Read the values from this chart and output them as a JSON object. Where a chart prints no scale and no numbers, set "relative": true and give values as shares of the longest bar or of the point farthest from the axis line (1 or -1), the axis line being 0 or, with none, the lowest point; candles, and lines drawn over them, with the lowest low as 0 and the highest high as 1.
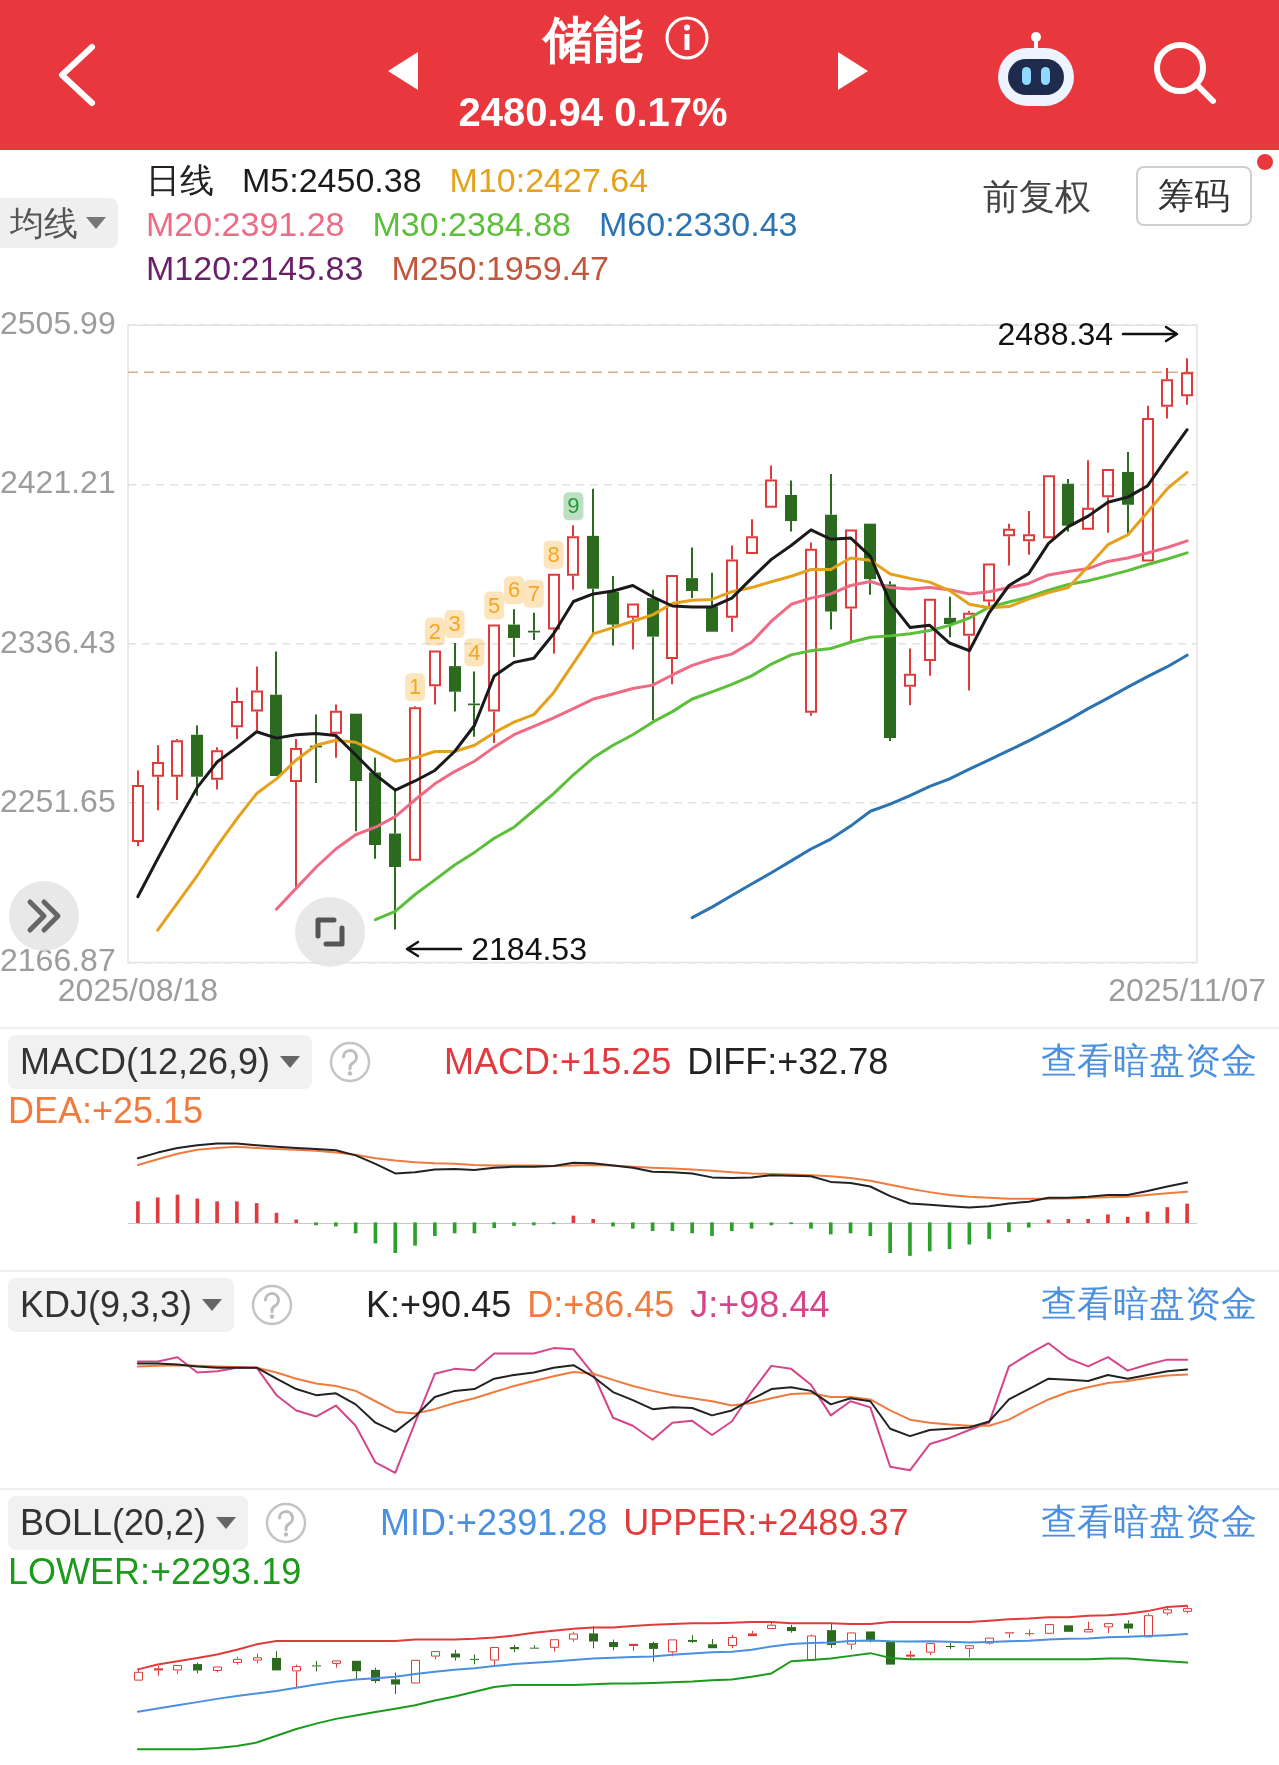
{
  "chart_data": [
    {
      "type": "candlestick",
      "title": "储能",
      "subtitle": "2480.94 0.17%",
      "categories": [
        "2025/08/18",
        null,
        null,
        null,
        null,
        null,
        null,
        null,
        null,
        null,
        null,
        null,
        null,
        null,
        null,
        null,
        null,
        null,
        null,
        null,
        null,
        null,
        null,
        null,
        null,
        null,
        null,
        null,
        null,
        null,
        null,
        null,
        null,
        null,
        null,
        null,
        null,
        null,
        null,
        null,
        null,
        null,
        null,
        null,
        null,
        null,
        null,
        null,
        null,
        null,
        null,
        null,
        null,
        "2025/11/07"
      ],
      "ohlc": [
        [
          2231.1,
          2269.1,
          2228.8,
          2261.3
        ],
        [
          2265.8,
          2282.5,
          2247.9,
          2273.6
        ],
        [
          2265.8,
          2285.9,
          2253.4,
          2285.2
        ],
        [
          2288.1,
          2293.0,
          2255.7,
          2265.8
        ],
        [
          2264.2,
          2281.4,
          2259.0,
          2279.8
        ],
        [
          2292.1,
          2313.2,
          2285.9,
          2306.0
        ],
        [
          2300.4,
          2324.4,
          2290.4,
          2311.6
        ],
        [
          2309.4,
          2332.4,
          2265.7,
          2266.2
        ],
        [
          2262.9,
          2285.9,
          2207.2,
          2281.0
        ],
        [
          2282.3,
          2298.9,
          2262.4,
          2281.4
        ],
        [
          2288.6,
          2304.2,
          2275.8,
          2300.9
        ],
        [
          2299.3,
          2299.3,
          2236.7,
          2263.5
        ],
        [
          2268.0,
          2275.8,
          2222.1,
          2229.5
        ],
        [
          2235.6,
          2259.0,
          2184.53,
          2217.7
        ],
        [
          2221.0,
          2303.3,
          2221.0,
          2302.7
        ],
        [
          2313.9,
          2332.9,
          2304.2,
          2332.9
        ],
        [
          2324.6,
          2336.9,
          2300.4,
          2311.0
        ],
        [
          2304.7,
          2321.7,
          2287.0,
          2303.8
        ],
        [
          2300.4,
          2346.7,
          2283.7,
          2346.7
        ],
        [
          2346.7,
          2354.8,
          2329.5,
          2339.6
        ],
        [
          2343.4,
          2353.0,
          2338.5,
          2342.5
        ],
        [
          2344.1,
          2373.8,
          2331.3,
          2373.8
        ],
        [
          2372.7,
          2399.5,
          2365.3,
          2393.7
        ],
        [
          2393.9,
          2419.0,
          2342.3,
          2365.8
        ],
        [
          2364.2,
          2372.5,
          2335.6,
          2346.7
        ],
        [
          2350.3,
          2357.9,
          2333.5,
          2357.9
        ],
        [
          2360.8,
          2365.3,
          2296.0,
          2340.3
        ],
        [
          2328.4,
          2373.1,
          2315.0,
          2373.1
        ],
        [
          2371.4,
          2387.7,
          2360.8,
          2364.6
        ],
        [
          2356.4,
          2374.3,
          2342.9,
          2342.9
        ],
        [
          2350.3,
          2388.8,
          2342.9,
          2381.4
        ],
        [
          2384.3,
          2402.7,
          2384.3,
          2393.7
        ],
        [
          2408.9,
          2431.3,
          2408.5,
          2423.9
        ],
        [
          2415.6,
          2423.4,
          2396.2,
          2401.8
        ],
        [
          2299.8,
          2390.4,
          2298.2,
          2387.0
        ],
        [
          2405.1,
          2426.8,
          2344.1,
          2353.7
        ],
        [
          2355.2,
          2397.3,
          2337.8,
          2397.3
        ],
        [
          2400.4,
          2400.4,
          2362.6,
          2370.9
        ],
        [
          2368.0,
          2369.8,
          2284.8,
          2286.3
        ],
        [
          2313.6,
          2334.0,
          2303.8,
          2320.6
        ],
        [
          2327.3,
          2360.4,
          2319.5,
          2360.4
        ],
        [
          2350.3,
          2361.5,
          2340.0,
          2347.0
        ],
        [
          2340.7,
          2354.1,
          2311.6,
          2353.0
        ],
        [
          2359.0,
          2379.2,
          2355.2,
          2379.2
        ],
        [
          2393.7,
          2400.4,
          2378.1,
          2397.7
        ],
        [
          2391.0,
          2407.1,
          2383.9,
          2394.8
        ],
        [
          2392.6,
          2426.2,
          2392.6,
          2426.2
        ],
        [
          2421.7,
          2424.1,
          2396.2,
          2399.3
        ],
        [
          2397.1,
          2434.2,
          2397.1,
          2408.9
        ],
        [
          2414.5,
          2429.5,
          2395.5,
          2429.5
        ],
        [
          2427.9,
          2438.5,
          2394.4,
          2410.5
        ],
        [
          2380.3,
          2463.1,
          2379.8,
          2456.6
        ],
        [
          2462.6,
          2483.2,
          2456.4,
          2477.2
        ],
        [
          2468.2,
          2488.34,
          2463.7,
          2480.94
        ]
      ],
      "colors": [
        "#e03b3b",
        "#e03b3b",
        "#e03b3b",
        "#2c6b1f",
        "#e03b3b",
        "#e03b3b",
        "#e03b3b",
        "#2c6b1f",
        "#e03b3b",
        "#2c6b1f",
        "#e03b3b",
        "#2c6b1f",
        "#2c6b1f",
        "#2c6b1f",
        "#e03b3b",
        "#e03b3b",
        "#2c6b1f",
        "#2c6b1f",
        "#e03b3b",
        "#2c6b1f",
        "#2c6b1f",
        "#e03b3b",
        "#e03b3b",
        "#2c6b1f",
        "#2c6b1f",
        "#e03b3b",
        "#2c6b1f",
        "#e03b3b",
        "#2c6b1f",
        "#2c6b1f",
        "#e03b3b",
        "#e03b3b",
        "#e03b3b",
        "#2c6b1f",
        "#e03b3b",
        "#2c6b1f",
        "#e03b3b",
        "#2c6b1f",
        "#2c6b1f",
        "#e03b3b",
        "#e03b3b",
        "#2c6b1f",
        "#e03b3b",
        "#e03b3b",
        "#e03b3b",
        "#e03b3b",
        "#e03b3b",
        "#2c6b1f",
        "#e03b3b",
        "#e03b3b",
        "#2c6b1f",
        "#e03b3b",
        "#e03b3b",
        "#e03b3b"
      ],
      "value_labels": [
        null,
        null,
        null,
        null,
        null,
        null,
        null,
        null,
        null,
        null,
        null,
        null,
        null,
        null,
        "1",
        "2",
        "3",
        "4",
        "5",
        "6",
        "7",
        "8",
        "9",
        null,
        null,
        null,
        null,
        null,
        null,
        null,
        null,
        null,
        null,
        null,
        null,
        null,
        null,
        null,
        null,
        null,
        null,
        null,
        null,
        null,
        null,
        null,
        null,
        null,
        null,
        null,
        null,
        null,
        null,
        null
      ],
      "series": [
        {
          "name": "M5:2450.38",
          "type": "line",
          "color": "#1a1a1a",
          "values": [
            2202.0,
            2222.1,
            2241.6,
            2260.1,
            2273.6,
            2281.4,
            2289.7,
            2286.3,
            2288.1,
            2288.8,
            2287.7,
            2277.4,
            2266.8,
            2258.6,
            2263.5,
            2269.1,
            2279.2,
            2293.0,
            2319.4,
            2326.6,
            2328.8,
            2341.8,
            2359.0,
            2363.0,
            2364.6,
            2367.5,
            2361.5,
            2356.6,
            2356.1,
            2356.1,
            2360.8,
            2371.3,
            2381.4,
            2388.8,
            2397.1,
            2392.1,
            2392.8,
            2383.0,
            2358.6,
            2345.2,
            2346.3,
            2336.9,
            2332.8,
            2353.0,
            2367.5,
            2373.8,
            2389.9,
            2398.8,
            2404.4,
            2411.8,
            2414.5,
            2420.5,
            2435.7,
            2450.38
          ]
        },
        {
          "name": "M10:2427.64",
          "type": "line",
          "color": "#e6a11c",
          "values": [
            null,
            2184.1,
            2198.6,
            2213.2,
            2228.8,
            2243.4,
            2256.8,
            2264.6,
            2274.7,
            2282.5,
            2285.2,
            2284.1,
            2279.2,
            2274.0,
            2275.8,
            2279.2,
            2279.2,
            2282.5,
            2289.2,
            2294.8,
            2298.8,
            2310.5,
            2326.1,
            2341.8,
            2345.1,
            2348.5,
            2351.9,
            2357.9,
            2359.7,
            2360.1,
            2364.2,
            2366.4,
            2369.5,
            2372.4,
            2376.0,
            2376.0,
            2382.1,
            2380.9,
            2373.6,
            2371.3,
            2369.3,
            2364.8,
            2357.5,
            2355.7,
            2356.3,
            2360.4,
            2363.7,
            2366.4,
            2377.6,
            2389.2,
            2394.4,
            2406.5,
            2419.0,
            2427.64
          ]
        },
        {
          "name": "M20:2391.28",
          "type": "line",
          "color": "#ef6a84",
          "values": [
            null,
            null,
            null,
            null,
            null,
            null,
            null,
            2195.3,
            2206.5,
            2217.6,
            2227.3,
            2234.9,
            2238.9,
            2244.5,
            2253.5,
            2262.0,
            2268.5,
            2274.0,
            2281.5,
            2288.1,
            2292.6,
            2297.1,
            2302.0,
            2307.1,
            2309.8,
            2312.7,
            2314.5,
            2319.9,
            2325.0,
            2328.4,
            2331.0,
            2337.3,
            2348.5,
            2357.5,
            2360.8,
            2363.0,
            2367.5,
            2369.6,
            2366.4,
            2365.7,
            2366.4,
            2365.3,
            2363.0,
            2364.2,
            2366.4,
            2368.6,
            2373.1,
            2374.9,
            2376.5,
            2380.3,
            2382.1,
            2384.8,
            2387.7,
            2391.28
          ]
        },
        {
          "name": "M30:2384.88",
          "type": "line",
          "color": "#5cbf3a",
          "values": [
            null,
            null,
            null,
            null,
            null,
            null,
            null,
            null,
            null,
            null,
            null,
            null,
            2189.7,
            2194.1,
            2203.1,
            2210.9,
            2218.8,
            2225.5,
            2233.0,
            2238.9,
            2247.8,
            2256.8,
            2266.8,
            2275.8,
            2282.5,
            2288.1,
            2294.8,
            2300.4,
            2307.1,
            2310.9,
            2314.9,
            2319.4,
            2325.7,
            2330.6,
            2332.8,
            2334.0,
            2337.3,
            2340.0,
            2340.7,
            2341.8,
            2343.6,
            2346.3,
            2350.2,
            2356.0,
            2358.7,
            2361.4,
            2365.0,
            2368.0,
            2370.0,
            2372.6,
            2375.4,
            2378.7,
            2381.6,
            2384.88
          ]
        },
        {
          "name": "M60:2330.43",
          "type": "line",
          "color": "#2b73b2",
          "values": [
            null,
            null,
            null,
            null,
            null,
            null,
            null,
            null,
            null,
            null,
            null,
            null,
            null,
            null,
            null,
            null,
            null,
            null,
            null,
            null,
            null,
            null,
            null,
            null,
            null,
            null,
            null,
            null,
            2190.8,
            2196.4,
            2202.6,
            2208.7,
            2214.7,
            2221.0,
            2227.3,
            2232.6,
            2239.5,
            2247.4,
            2251.2,
            2255.7,
            2260.6,
            2264.6,
            2269.8,
            2274.7,
            2279.8,
            2284.8,
            2290.3,
            2295.9,
            2302.0,
            2307.6,
            2313.4,
            2319.0,
            2324.3,
            2330.43
          ]
        },
        {
          "name": "M120:2145.83",
          "type": "line",
          "color": "#6a1f69",
          "values": [
            null,
            null,
            null,
            null,
            null,
            null,
            null,
            null,
            null,
            null,
            null,
            null,
            null,
            null,
            null,
            null,
            null,
            null,
            null,
            null,
            null,
            null,
            null,
            null,
            null,
            null,
            null,
            null,
            null,
            null,
            null,
            null,
            null,
            null,
            null,
            null,
            null,
            null,
            null,
            null,
            null,
            null,
            null,
            null,
            null,
            null,
            null,
            null,
            null,
            null,
            null,
            null,
            null,
            null
          ]
        },
        {
          "name": "M250:1959.47",
          "type": "line",
          "color": "#c2573d",
          "values": [
            null,
            null,
            null,
            null,
            null,
            null,
            null,
            null,
            null,
            null,
            null,
            null,
            null,
            null,
            null,
            null,
            null,
            null,
            null,
            null,
            null,
            null,
            null,
            null,
            null,
            null,
            null,
            null,
            null,
            null,
            null,
            null,
            null,
            null,
            null,
            null,
            null,
            null,
            null,
            null,
            null,
            null,
            null,
            null,
            null,
            null,
            null,
            null,
            null,
            null,
            null,
            null,
            null,
            null
          ]
        }
      ],
      "ylim": [
        2166.87,
        2505.99
      ],
      "yticks": [
        2166.87,
        2251.65,
        2336.43,
        2421.21,
        2505.99
      ],
      "grid": "y",
      "legend": "top left",
      "marker": "none",
      "ref_lines": [
        {
          "axis": "y",
          "value": 2480.94,
          "color": "#dcae82",
          "line_style": "dashed"
        }
      ],
      "annotations": [
        "日线",
        "均线",
        "前复权",
        "筹码",
        "2488.34",
        "2184.53"
      ]
    },
    {
      "type": "line",
      "title": "MACD(12,26,9)",
      "relative": true,
      "categories": [
        null,
        null,
        null,
        null,
        null,
        null,
        null,
        null,
        null,
        null,
        null,
        null,
        null,
        null,
        null,
        null,
        null,
        null,
        null,
        null,
        null,
        null,
        null,
        null,
        null,
        null,
        null,
        null,
        null,
        null,
        null,
        null,
        null,
        null,
        null,
        null,
        null,
        null,
        null,
        null,
        null,
        null,
        null,
        null,
        null,
        null,
        null,
        null,
        null,
        null,
        null,
        null,
        null,
        null
      ],
      "tick_labels": false,
      "legend": "top left",
      "marker": "none",
      "series": [
        {
          "name": "MACD:+15.25",
          "type": "bar",
          "color": "#e0393e",
          "colors": [
            "#e0393e",
            "#e0393e",
            "#e0393e",
            "#e0393e",
            "#e0393e",
            "#e0393e",
            "#e0393e",
            "#e0393e",
            "#e0393e",
            "#2ba02b",
            "#2ba02b",
            "#2ba02b",
            "#2ba02b",
            "#2ba02b",
            "#2ba02b",
            "#2ba02b",
            "#2ba02b",
            "#2ba02b",
            "#2ba02b",
            "#2ba02b",
            "#2ba02b",
            "#2ba02b",
            "#e0393e",
            "#e0393e",
            "#2ba02b",
            "#2ba02b",
            "#2ba02b",
            "#2ba02b",
            "#2ba02b",
            "#2ba02b",
            "#2ba02b",
            "#2ba02b",
            "#2ba02b",
            "#2ba02b",
            "#2ba02b",
            "#2ba02b",
            "#2ba02b",
            "#2ba02b",
            "#2ba02b",
            "#2ba02b",
            "#2ba02b",
            "#2ba02b",
            "#2ba02b",
            "#2ba02b",
            "#2ba02b",
            "#2ba02b",
            "#e0393e",
            "#e0393e",
            "#e0393e",
            "#e0393e",
            "#e0393e",
            "#e0393e",
            "#e0393e",
            "#e0393e"
          ],
          "values": [
            0.265,
            0.315,
            0.35,
            0.301,
            0.265,
            0.265,
            0.243,
            0.121,
            0.036,
            -0.028,
            -0.043,
            -0.129,
            -0.257,
            -0.378,
            -0.285,
            -0.164,
            -0.129,
            -0.129,
            -0.064,
            -0.036,
            -0.028,
            -0.014,
            0.085,
            0.043,
            -0.043,
            -0.071,
            -0.101,
            -0.101,
            -0.129,
            -0.164,
            -0.101,
            -0.071,
            -0.028,
            -0.014,
            -0.071,
            -0.143,
            -0.129,
            -0.164,
            -0.378,
            -0.414,
            -0.357,
            -0.329,
            -0.271,
            -0.2,
            -0.115,
            -0.057,
            0.036,
            0.043,
            0.043,
            0.101,
            0.071,
            0.136,
            0.192,
            0.236
          ]
        },
        {
          "name": "DIFF:+32.78",
          "color": "#222222",
          "values": [
            0.814,
            0.885,
            0.943,
            0.978,
            1,
            1,
            0.978,
            0.958,
            0.943,
            0.929,
            0.915,
            0.85,
            0.743,
            0.622,
            0.636,
            0.671,
            0.679,
            0.665,
            0.693,
            0.707,
            0.707,
            0.715,
            0.757,
            0.75,
            0.721,
            0.693,
            0.643,
            0.636,
            0.622,
            0.572,
            0.564,
            0.572,
            0.6,
            0.592,
            0.586,
            0.515,
            0.501,
            0.457,
            0.336,
            0.243,
            0.228,
            0.208,
            0.192,
            0.208,
            0.243,
            0.265,
            0.315,
            0.315,
            0.329,
            0.35,
            0.35,
            0.4,
            0.457,
            0.508
          ]
        },
        {
          "name": "DEA:+25.15",
          "color": "#f07b3f",
          "values": [
            0.729,
            0.8,
            0.871,
            0.921,
            0.943,
            0.958,
            0.943,
            0.929,
            0.921,
            0.907,
            0.885,
            0.857,
            0.814,
            0.786,
            0.764,
            0.75,
            0.743,
            0.729,
            0.721,
            0.721,
            0.721,
            0.715,
            0.721,
            0.729,
            0.721,
            0.707,
            0.693,
            0.685,
            0.671,
            0.657,
            0.636,
            0.622,
            0.614,
            0.608,
            0.6,
            0.586,
            0.564,
            0.529,
            0.479,
            0.428,
            0.386,
            0.35,
            0.329,
            0.315,
            0.301,
            0.301,
            0.301,
            0.307,
            0.315,
            0.321,
            0.329,
            0.35,
            0.372,
            0.39
          ]
        }
      ],
      "annotations": [
        "查看暗盘资金"
      ]
    },
    {
      "type": "line",
      "title": "KDJ(9,3,3)",
      "relative": true,
      "categories": [
        null,
        null,
        null,
        null,
        null,
        null,
        null,
        null,
        null,
        null,
        null,
        null,
        null,
        null,
        null,
        null,
        null,
        null,
        null,
        null,
        null,
        null,
        null,
        null,
        null,
        null,
        null,
        null,
        null,
        null,
        null,
        null,
        null,
        null,
        null,
        null,
        null,
        null,
        null,
        null,
        null,
        null,
        null,
        null,
        null,
        null,
        null,
        null,
        null,
        null,
        null,
        null,
        null,
        null
      ],
      "tick_labels": false,
      "legend": "top left",
      "marker": "none",
      "series": [
        {
          "name": "K:+90.45",
          "color": "#222222",
          "values": [
            0.844,
            0.844,
            0.835,
            0.821,
            0.811,
            0.811,
            0.811,
            0.726,
            0.646,
            0.599,
            0.613,
            0.528,
            0.387,
            0.316,
            0.434,
            0.585,
            0.632,
            0.646,
            0.726,
            0.755,
            0.774,
            0.811,
            0.83,
            0.741,
            0.623,
            0.561,
            0.491,
            0.505,
            0.5,
            0.443,
            0.481,
            0.566,
            0.646,
            0.66,
            0.632,
            0.528,
            0.575,
            0.552,
            0.34,
            0.283,
            0.33,
            0.34,
            0.349,
            0.396,
            0.566,
            0.646,
            0.726,
            0.717,
            0.708,
            0.755,
            0.726,
            0.755,
            0.783,
            0.797
          ]
        },
        {
          "name": "D:+86.45",
          "color": "#f07b3f",
          "values": [
            0.821,
            0.825,
            0.83,
            0.825,
            0.821,
            0.816,
            0.811,
            0.774,
            0.726,
            0.689,
            0.67,
            0.632,
            0.552,
            0.472,
            0.458,
            0.491,
            0.538,
            0.575,
            0.623,
            0.67,
            0.708,
            0.745,
            0.778,
            0.764,
            0.717,
            0.67,
            0.632,
            0.599,
            0.575,
            0.552,
            0.519,
            0.538,
            0.575,
            0.608,
            0.613,
            0.585,
            0.585,
            0.566,
            0.481,
            0.41,
            0.387,
            0.373,
            0.363,
            0.363,
            0.41,
            0.491,
            0.566,
            0.623,
            0.66,
            0.693,
            0.708,
            0.731,
            0.75,
            0.759
          ]
        },
        {
          "name": "J:+98.44",
          "color": "#d6458a",
          "values": [
            0.858,
            0.858,
            0.892,
            0.774,
            0.783,
            0.811,
            0.811,
            0.599,
            0.481,
            0.434,
            0.519,
            0.363,
            0.08,
            0,
            0.387,
            0.764,
            0.802,
            0.792,
            0.92,
            0.92,
            0.92,
            0.962,
            0.953,
            0.764,
            0.425,
            0.363,
            0.255,
            0.387,
            0.401,
            0.292,
            0.396,
            0.623,
            0.825,
            0.802,
            0.679,
            0.443,
            0.552,
            0.505,
            0.047,
            0.019,
            0.222,
            0.269,
            0.33,
            0.387,
            0.821,
            0.915,
            1,
            0.882,
            0.821,
            0.892,
            0.788,
            0.835,
            0.873,
            0.872
          ]
        }
      ],
      "annotations": [
        "查看暗盘资金"
      ]
    },
    {
      "type": "line",
      "title": "BOLL(20,2)",
      "relative": true,
      "categories": [
        null,
        null,
        null,
        null,
        null,
        null,
        null,
        null,
        null,
        null,
        null,
        null,
        null,
        null,
        null,
        null,
        null,
        null,
        null,
        null,
        null,
        null,
        null,
        null,
        null,
        null,
        null,
        null,
        null,
        null,
        null,
        null,
        null,
        null,
        null,
        null,
        null,
        null,
        null,
        null,
        null,
        null,
        null,
        null,
        null,
        null,
        null,
        null,
        null,
        null,
        null,
        null,
        null,
        null
      ],
      "tick_labels": false,
      "legend": "top left",
      "marker": "none",
      "series": [
        {
          "type": "candlestick",
          "ohlc": [
            [
              0.153,
              0.278,
              0.146,
              0.253
            ],
            [
              0.268,
              0.322,
              0.209,
              0.293
            ],
            [
              0.268,
              0.334,
              0.227,
              0.331
            ],
            [
              0.341,
              0.357,
              0.234,
              0.268
            ],
            [
              0.262,
              0.319,
              0.245,
              0.314
            ],
            [
              0.354,
              0.424,
              0.334,
              0.4
            ],
            [
              0.381,
              0.46,
              0.348,
              0.418
            ],
            [
              0.411,
              0.487,
              0.267,
              0.269
            ],
            [
              0.258,
              0.334,
              0.075,
              0.318
            ],
            [
              0.322,
              0.376,
              0.256,
              0.319
            ],
            [
              0.343,
              0.394,
              0.3,
              0.383
            ],
            [
              0.378,
              0.378,
              0.172,
              0.26
            ],
            [
              0.275,
              0.3,
              0.124,
              0.148
            ],
            [
              0.168,
              0.245,
              0,
              0.109
            ],
            [
              0.12,
              0.391,
              0.12,
              0.389
            ],
            [
              0.426,
              0.488,
              0.394,
              0.488
            ],
            [
              0.461,
              0.502,
              0.381,
              0.416
            ],
            [
              0.396,
              0.451,
              0.337,
              0.393
            ],
            [
              0.381,
              0.534,
              0.326,
              0.534
            ],
            [
              0.534,
              0.56,
              0.477,
              0.51
            ],
            [
              0.523,
              0.555,
              0.507,
              0.52
            ],
            [
              0.525,
              0.623,
              0.483,
              0.623
            ],
            [
              0.619,
              0.708,
              0.595,
              0.688
            ],
            [
              0.689,
              0.772,
              0.519,
              0.597
            ],
            [
              0.591,
              0.619,
              0.497,
              0.534
            ],
            [
              0.546,
              0.571,
              0.49,
              0.571
            ],
            [
              0.58,
              0.595,
              0.367,
              0.513
            ],
            [
              0.474,
              0.621,
              0.429,
              0.621
            ],
            [
              0.615,
              0.669,
              0.58,
              0.593
            ],
            [
              0.566,
              0.625,
              0.521,
              0.521
            ],
            [
              0.546,
              0.672,
              0.521,
              0.648
            ],
            [
              0.658,
              0.718,
              0.658,
              0.688
            ],
            [
              0.739,
              0.812,
              0.737,
              0.788
            ],
            [
              0.761,
              0.786,
              0.697,
              0.715
            ],
            [
              0.379,
              0.678,
              0.374,
              0.666
            ],
            [
              0.726,
              0.797,
              0.525,
              0.557
            ],
            [
              0.562,
              0.7,
              0.504,
              0.7
            ],
            [
              0.711,
              0.711,
              0.586,
              0.613
            ],
            [
              0.604,
              0.61,
              0.33,
              0.335
            ],
            [
              0.425,
              0.492,
              0.393,
              0.448
            ],
            [
              0.47,
              0.579,
              0.444,
              0.579
            ],
            [
              0.546,
              0.582,
              0.512,
              0.535
            ],
            [
              0.514,
              0.558,
              0.418,
              0.555
            ],
            [
              0.574,
              0.641,
              0.562,
              0.641
            ],
            [
              0.688,
              0.711,
              0.637,
              0.702
            ],
            [
              0.68,
              0.733,
              0.656,
              0.692
            ],
            [
              0.685,
              0.795,
              0.685,
              0.795
            ],
            [
              0.781,
              0.789,
              0.697,
              0.707
            ],
            [
              0.7,
              0.822,
              0.7,
              0.739
            ],
            [
              0.757,
              0.806,
              0.694,
              0.806
            ],
            [
              0.801,
              0.836,
              0.691,
              0.744
            ],
            [
              0.644,
              0.917,
              0.643,
              0.896
            ],
            [
              0.915,
              0.983,
              0.895,
              0.963
            ],
            [
              0.934,
              1,
              0.919,
              0.976
            ]
          ],
          "colors": [
            "#e03b3b",
            "#e03b3b",
            "#e03b3b",
            "#2c6b1f",
            "#e03b3b",
            "#e03b3b",
            "#e03b3b",
            "#2c6b1f",
            "#e03b3b",
            "#2c6b1f",
            "#e03b3b",
            "#2c6b1f",
            "#2c6b1f",
            "#2c6b1f",
            "#e03b3b",
            "#e03b3b",
            "#2c6b1f",
            "#2c6b1f",
            "#e03b3b",
            "#2c6b1f",
            "#2c6b1f",
            "#e03b3b",
            "#e03b3b",
            "#2c6b1f",
            "#2c6b1f",
            "#e03b3b",
            "#2c6b1f",
            "#e03b3b",
            "#2c6b1f",
            "#2c6b1f",
            "#e03b3b",
            "#e03b3b",
            "#e03b3b",
            "#2c6b1f",
            "#e03b3b",
            "#2c6b1f",
            "#e03b3b",
            "#2c6b1f",
            "#2c6b1f",
            "#e03b3b",
            "#e03b3b",
            "#2c6b1f",
            "#e03b3b",
            "#e03b3b",
            "#e03b3b",
            "#e03b3b",
            "#e03b3b",
            "#2c6b1f",
            "#e03b3b",
            "#e03b3b",
            "#2c6b1f",
            "#e03b3b",
            "#e03b3b",
            "#e03b3b"
          ]
        },
        {
          "name": "MID:+2391.28",
          "color": "#4a8fe0",
          "values": [
            -0.199,
            -0.163,
            -0.127,
            -0.091,
            -0.054,
            -0.021,
            0.008,
            0.035,
            0.072,
            0.109,
            0.141,
            0.166,
            0.179,
            0.197,
            0.227,
            0.255,
            0.276,
            0.294,
            0.319,
            0.341,
            0.356,
            0.371,
            0.387,
            0.403,
            0.412,
            0.422,
            0.428,
            0.446,
            0.462,
            0.474,
            0.482,
            0.503,
            0.54,
            0.569,
            0.58,
            0.587,
            0.602,
            0.609,
            0.599,
            0.596,
            0.599,
            0.595,
            0.587,
            0.591,
            0.599,
            0.606,
            0.621,
            0.627,
            0.632,
            0.644,
            0.65,
            0.659,
            0.669,
            0.681
          ]
        },
        {
          "name": "UPPER:+2489.37",
          "color": "#e03b3b",
          "values": [
            0.281,
            0.335,
            0.373,
            0.411,
            0.45,
            0.504,
            0.565,
            0.604,
            0.604,
            0.604,
            0.604,
            0.604,
            0.604,
            0.604,
            0.619,
            0.619,
            0.619,
            0.627,
            0.642,
            0.665,
            0.696,
            0.719,
            0.742,
            0.757,
            0.757,
            0.773,
            0.788,
            0.796,
            0.804,
            0.804,
            0.811,
            0.819,
            0.819,
            0.804,
            0.804,
            0.804,
            0.796,
            0.796,
            0.819,
            0.819,
            0.819,
            0.819,
            0.819,
            0.834,
            0.85,
            0.857,
            0.873,
            0.873,
            0.888,
            0.896,
            0.911,
            0.942,
            0.988,
            1.003
          ]
        },
        {
          "name": "LOWER:+2293.19",
          "color": "#1b9a1b",
          "values": [
            -0.626,
            -0.626,
            -0.626,
            -0.626,
            -0.611,
            -0.588,
            -0.55,
            -0.473,
            -0.396,
            -0.335,
            -0.281,
            -0.242,
            -0.204,
            -0.165,
            -0.127,
            -0.073,
            -0.027,
            0.027,
            0.081,
            0.104,
            0.104,
            0.104,
            0.104,
            0.111,
            0.119,
            0.119,
            0.127,
            0.135,
            0.142,
            0.158,
            0.165,
            0.196,
            0.235,
            0.373,
            0.388,
            0.404,
            0.434,
            0.465,
            0.411,
            0.396,
            0.396,
            0.396,
            0.396,
            0.396,
            0.396,
            0.396,
            0.396,
            0.396,
            0.396,
            0.404,
            0.404,
            0.388,
            0.373,
            0.358
          ]
        }
      ],
      "annotations": [
        "查看暗盘资金"
      ]
    }
  ]
}
